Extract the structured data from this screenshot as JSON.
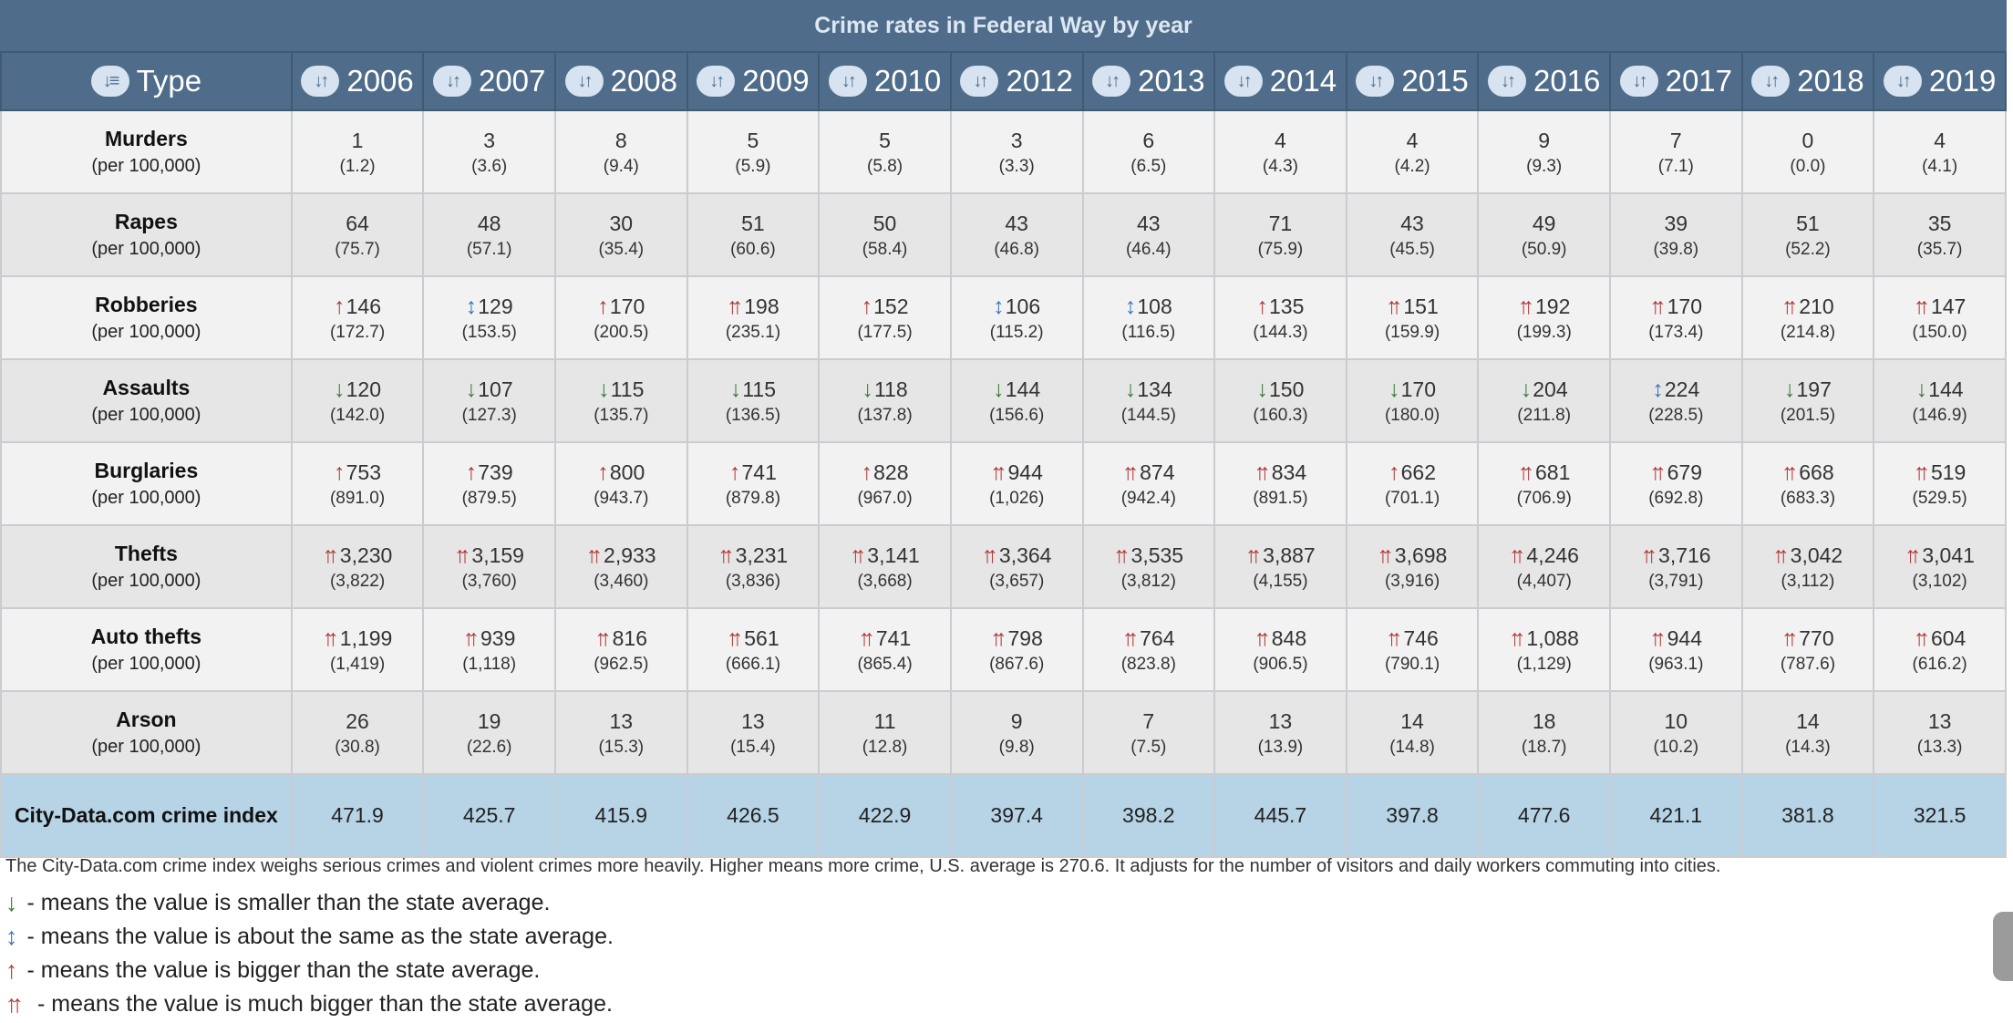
{
  "title": "Crime rates in Federal Way by year",
  "header": {
    "type_label": "Type",
    "years": [
      "2006",
      "2007",
      "2008",
      "2009",
      "2010",
      "2012",
      "2013",
      "2014",
      "2015",
      "2016",
      "2017",
      "2018",
      "2019"
    ]
  },
  "per_label": "(per 100,000)",
  "rows": [
    {
      "name": "Murders",
      "cells": [
        {
          "v": "1",
          "r": "(1.2)",
          "a": ""
        },
        {
          "v": "3",
          "r": "(3.6)",
          "a": ""
        },
        {
          "v": "8",
          "r": "(9.4)",
          "a": ""
        },
        {
          "v": "5",
          "r": "(5.9)",
          "a": ""
        },
        {
          "v": "5",
          "r": "(5.8)",
          "a": ""
        },
        {
          "v": "3",
          "r": "(3.3)",
          "a": ""
        },
        {
          "v": "6",
          "r": "(6.5)",
          "a": ""
        },
        {
          "v": "4",
          "r": "(4.3)",
          "a": ""
        },
        {
          "v": "4",
          "r": "(4.2)",
          "a": ""
        },
        {
          "v": "9",
          "r": "(9.3)",
          "a": ""
        },
        {
          "v": "7",
          "r": "(7.1)",
          "a": ""
        },
        {
          "v": "0",
          "r": "(0.0)",
          "a": ""
        },
        {
          "v": "4",
          "r": "(4.1)",
          "a": ""
        }
      ]
    },
    {
      "name": "Rapes",
      "cells": [
        {
          "v": "64",
          "r": "(75.7)",
          "a": ""
        },
        {
          "v": "48",
          "r": "(57.1)",
          "a": ""
        },
        {
          "v": "30",
          "r": "(35.4)",
          "a": ""
        },
        {
          "v": "51",
          "r": "(60.6)",
          "a": ""
        },
        {
          "v": "50",
          "r": "(58.4)",
          "a": ""
        },
        {
          "v": "43",
          "r": "(46.8)",
          "a": ""
        },
        {
          "v": "43",
          "r": "(46.4)",
          "a": ""
        },
        {
          "v": "71",
          "r": "(75.9)",
          "a": ""
        },
        {
          "v": "43",
          "r": "(45.5)",
          "a": ""
        },
        {
          "v": "49",
          "r": "(50.9)",
          "a": ""
        },
        {
          "v": "39",
          "r": "(39.8)",
          "a": ""
        },
        {
          "v": "51",
          "r": "(52.2)",
          "a": ""
        },
        {
          "v": "35",
          "r": "(35.7)",
          "a": ""
        }
      ]
    },
    {
      "name": "Robberies",
      "cells": [
        {
          "v": "146",
          "r": "(172.7)",
          "a": "up"
        },
        {
          "v": "129",
          "r": "(153.5)",
          "a": "same"
        },
        {
          "v": "170",
          "r": "(200.5)",
          "a": "up"
        },
        {
          "v": "198",
          "r": "(235.1)",
          "a": "up2"
        },
        {
          "v": "152",
          "r": "(177.5)",
          "a": "up"
        },
        {
          "v": "106",
          "r": "(115.2)",
          "a": "same"
        },
        {
          "v": "108",
          "r": "(116.5)",
          "a": "same"
        },
        {
          "v": "135",
          "r": "(144.3)",
          "a": "up"
        },
        {
          "v": "151",
          "r": "(159.9)",
          "a": "up2"
        },
        {
          "v": "192",
          "r": "(199.3)",
          "a": "up2"
        },
        {
          "v": "170",
          "r": "(173.4)",
          "a": "up2"
        },
        {
          "v": "210",
          "r": "(214.8)",
          "a": "up2"
        },
        {
          "v": "147",
          "r": "(150.0)",
          "a": "up2"
        }
      ]
    },
    {
      "name": "Assaults",
      "cells": [
        {
          "v": "120",
          "r": "(142.0)",
          "a": "down"
        },
        {
          "v": "107",
          "r": "(127.3)",
          "a": "down"
        },
        {
          "v": "115",
          "r": "(135.7)",
          "a": "down"
        },
        {
          "v": "115",
          "r": "(136.5)",
          "a": "down"
        },
        {
          "v": "118",
          "r": "(137.8)",
          "a": "down"
        },
        {
          "v": "144",
          "r": "(156.6)",
          "a": "down"
        },
        {
          "v": "134",
          "r": "(144.5)",
          "a": "down"
        },
        {
          "v": "150",
          "r": "(160.3)",
          "a": "down"
        },
        {
          "v": "170",
          "r": "(180.0)",
          "a": "down"
        },
        {
          "v": "204",
          "r": "(211.8)",
          "a": "down"
        },
        {
          "v": "224",
          "r": "(228.5)",
          "a": "same"
        },
        {
          "v": "197",
          "r": "(201.5)",
          "a": "down"
        },
        {
          "v": "144",
          "r": "(146.9)",
          "a": "down"
        }
      ]
    },
    {
      "name": "Burglaries",
      "cells": [
        {
          "v": "753",
          "r": "(891.0)",
          "a": "up"
        },
        {
          "v": "739",
          "r": "(879.5)",
          "a": "up"
        },
        {
          "v": "800",
          "r": "(943.7)",
          "a": "up"
        },
        {
          "v": "741",
          "r": "(879.8)",
          "a": "up"
        },
        {
          "v": "828",
          "r": "(967.0)",
          "a": "up"
        },
        {
          "v": "944",
          "r": "(1,026)",
          "a": "up2"
        },
        {
          "v": "874",
          "r": "(942.4)",
          "a": "up2"
        },
        {
          "v": "834",
          "r": "(891.5)",
          "a": "up2"
        },
        {
          "v": "662",
          "r": "(701.1)",
          "a": "up"
        },
        {
          "v": "681",
          "r": "(706.9)",
          "a": "up2"
        },
        {
          "v": "679",
          "r": "(692.8)",
          "a": "up2"
        },
        {
          "v": "668",
          "r": "(683.3)",
          "a": "up2"
        },
        {
          "v": "519",
          "r": "(529.5)",
          "a": "up2"
        }
      ]
    },
    {
      "name": "Thefts",
      "cells": [
        {
          "v": "3,230",
          "r": "(3,822)",
          "a": "up2"
        },
        {
          "v": "3,159",
          "r": "(3,760)",
          "a": "up2"
        },
        {
          "v": "2,933",
          "r": "(3,460)",
          "a": "up2"
        },
        {
          "v": "3,231",
          "r": "(3,836)",
          "a": "up2"
        },
        {
          "v": "3,141",
          "r": "(3,668)",
          "a": "up2"
        },
        {
          "v": "3,364",
          "r": "(3,657)",
          "a": "up2"
        },
        {
          "v": "3,535",
          "r": "(3,812)",
          "a": "up2"
        },
        {
          "v": "3,887",
          "r": "(4,155)",
          "a": "up2"
        },
        {
          "v": "3,698",
          "r": "(3,916)",
          "a": "up2"
        },
        {
          "v": "4,246",
          "r": "(4,407)",
          "a": "up2"
        },
        {
          "v": "3,716",
          "r": "(3,791)",
          "a": "up2"
        },
        {
          "v": "3,042",
          "r": "(3,112)",
          "a": "up2"
        },
        {
          "v": "3,041",
          "r": "(3,102)",
          "a": "up2"
        }
      ]
    },
    {
      "name": "Auto thefts",
      "cells": [
        {
          "v": "1,199",
          "r": "(1,419)",
          "a": "up2"
        },
        {
          "v": "939",
          "r": "(1,118)",
          "a": "up2"
        },
        {
          "v": "816",
          "r": "(962.5)",
          "a": "up2"
        },
        {
          "v": "561",
          "r": "(666.1)",
          "a": "up2"
        },
        {
          "v": "741",
          "r": "(865.4)",
          "a": "up2"
        },
        {
          "v": "798",
          "r": "(867.6)",
          "a": "up2"
        },
        {
          "v": "764",
          "r": "(823.8)",
          "a": "up2"
        },
        {
          "v": "848",
          "r": "(906.5)",
          "a": "up2"
        },
        {
          "v": "746",
          "r": "(790.1)",
          "a": "up2"
        },
        {
          "v": "1,088",
          "r": "(1,129)",
          "a": "up2"
        },
        {
          "v": "944",
          "r": "(963.1)",
          "a": "up2"
        },
        {
          "v": "770",
          "r": "(787.6)",
          "a": "up2"
        },
        {
          "v": "604",
          "r": "(616.2)",
          "a": "up2"
        }
      ]
    },
    {
      "name": "Arson",
      "cells": [
        {
          "v": "26",
          "r": "(30.8)",
          "a": ""
        },
        {
          "v": "19",
          "r": "(22.6)",
          "a": ""
        },
        {
          "v": "13",
          "r": "(15.3)",
          "a": ""
        },
        {
          "v": "13",
          "r": "(15.4)",
          "a": ""
        },
        {
          "v": "11",
          "r": "(12.8)",
          "a": ""
        },
        {
          "v": "9",
          "r": "(9.8)",
          "a": ""
        },
        {
          "v": "7",
          "r": "(7.5)",
          "a": ""
        },
        {
          "v": "13",
          "r": "(13.9)",
          "a": ""
        },
        {
          "v": "14",
          "r": "(14.8)",
          "a": ""
        },
        {
          "v": "18",
          "r": "(18.7)",
          "a": ""
        },
        {
          "v": "10",
          "r": "(10.2)",
          "a": ""
        },
        {
          "v": "14",
          "r": "(14.3)",
          "a": ""
        },
        {
          "v": "13",
          "r": "(13.3)",
          "a": ""
        }
      ]
    }
  ],
  "index_row": {
    "label": "City-Data.com crime index",
    "values": [
      "471.9",
      "425.7",
      "415.9",
      "426.5",
      "422.9",
      "397.4",
      "398.2",
      "445.7",
      "397.8",
      "477.6",
      "421.1",
      "381.8",
      "321.5"
    ]
  },
  "note": "The City-Data.com crime index weighs serious crimes and violent crimes more heavily. Higher means more crime, U.S. average is 270.6. It adjusts for the number of visitors and daily workers commuting into cities.",
  "legend": [
    {
      "arrow": "down",
      "icon": "arrow-down-icon",
      "text": "- means the value is smaller than the state average."
    },
    {
      "arrow": "same",
      "icon": "arrow-updown-icon",
      "text": "- means the value is about the same as the state average."
    },
    {
      "arrow": "up",
      "icon": "arrow-up-icon",
      "text": "- means the value is bigger than the state average."
    },
    {
      "arrow": "up2",
      "icon": "double-arrow-up-icon",
      "text": "- means the value is much bigger than the state average."
    }
  ],
  "colors": {
    "header_bg": "#4f6d8b",
    "index_row_bg": "#b7d3e6",
    "arrow_down": "#3b7d3b",
    "arrow_same": "#3f77c0",
    "arrow_up": "#b23a3a"
  }
}
